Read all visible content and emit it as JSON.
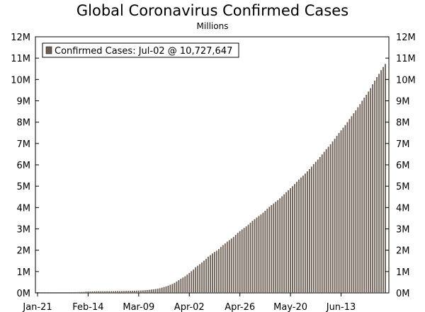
{
  "chart_data": {
    "type": "bar",
    "title": "Global Coronavirus Confirmed Cases",
    "subtitle": "Millions",
    "xlabel": "",
    "ylabel": "",
    "ylim": [
      0,
      12000000
    ],
    "y_ticks": [
      0,
      1000000,
      2000000,
      3000000,
      4000000,
      5000000,
      6000000,
      7000000,
      8000000,
      9000000,
      10000000,
      11000000,
      12000000
    ],
    "y_tick_labels": [
      "0M",
      "1M",
      "2M",
      "3M",
      "4M",
      "5M",
      "6M",
      "7M",
      "8M",
      "9M",
      "10M",
      "11M",
      "12M"
    ],
    "y_axis_sides": "both",
    "x_tick_labels": [
      "Jan-21",
      "Feb-14",
      "Mar-09",
      "Apr-02",
      "Apr-26",
      "May-20",
      "Jun-13"
    ],
    "x_tick_day_index": [
      0,
      24,
      48,
      72,
      96,
      120,
      144
    ],
    "grid": false,
    "legend": {
      "position": "top-left",
      "entries": [
        "Confirmed Cases: Jul-02 @ 10,727,647"
      ]
    },
    "series": [
      {
        "name": "Confirmed Cases",
        "color": "#6b5d52",
        "start_date": "Jan-21",
        "end_date": "Jul-02",
        "values": [
          300,
          440,
          580,
          850,
          1300,
          2000,
          2800,
          4600,
          6000,
          7800,
          9800,
          11900,
          14600,
          17400,
          20600,
          24500,
          28200,
          31500,
          34900,
          37500,
          40500,
          43100,
          45200,
          60300,
          64400,
          67100,
          69200,
          71300,
          73300,
          75200,
          75700,
          76700,
          77700,
          78600,
          78900,
          79500,
          80300,
          81400,
          82700,
          84100,
          86000,
          88400,
          90400,
          93000,
          95300,
          98200,
          102000,
          106000,
          110000,
          114000,
          119000,
          126000,
          134000,
          142000,
          157000,
          169000,
          183000,
          198000,
          219000,
          246000,
          276000,
          307000,
          341000,
          382000,
          418000,
          468000,
          532000,
          597000,
          663000,
          721000,
          782000,
          857000,
          933000,
          1015000,
          1096000,
          1199000,
          1273000,
          1345000,
          1426000,
          1511000,
          1596000,
          1696000,
          1771000,
          1846000,
          1917000,
          1976000,
          2056000,
          2152000,
          2240000,
          2317000,
          2401000,
          2472000,
          2549000,
          2624000,
          2720000,
          2813000,
          2897000,
          2972000,
          3043000,
          3117000,
          3196000,
          3288000,
          3377000,
          3454000,
          3531000,
          3602000,
          3676000,
          3757000,
          3849000,
          3943000,
          4034000,
          4114000,
          4189000,
          4269000,
          4346000,
          4433000,
          4527000,
          4621000,
          4721000,
          4808000,
          4905000,
          4999000,
          5102000,
          5208000,
          5310000,
          5407000,
          5494000,
          5590000,
          5695000,
          5801000,
          5917000,
          6036000,
          6146000,
          6249000,
          6366000,
          6486000,
          6613000,
          6737000,
          6849000,
          6966000,
          7096000,
          7221000,
          7357000,
          7489000,
          7618000,
          7742000,
          7865000,
          8002000,
          8145000,
          8281000,
          8418000,
          8553000,
          8699000,
          8845000,
          9005000,
          9146000,
          9283000,
          9435000,
          9594000,
          9775000,
          9949000,
          10113000,
          10264000,
          10437000,
          10587000,
          10727647
        ]
      }
    ]
  }
}
